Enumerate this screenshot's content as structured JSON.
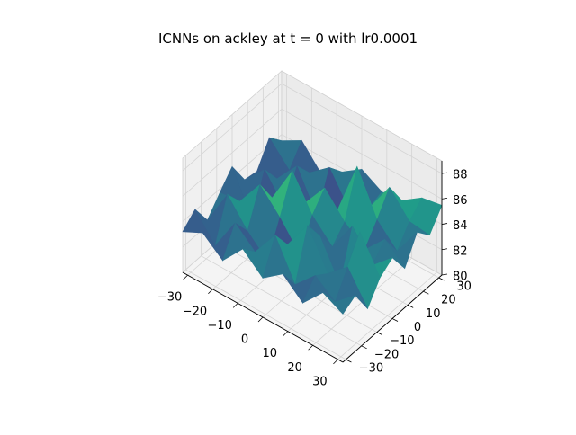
{
  "chart_data": {
    "type": "surface3d",
    "title": "ICNNs on ackley at t = 0 with lr0.0001",
    "colormap": "viridis",
    "grid": true,
    "x_ticks": [
      "−30",
      "−20",
      "−10",
      "0",
      "10",
      "20",
      "30"
    ],
    "y_ticks": [
      "−30",
      "−20",
      "−10",
      "0",
      "10",
      "20",
      "30"
    ],
    "z_ticks": [
      "80",
      "82",
      "84",
      "86",
      "88"
    ],
    "xlim": [
      -32,
      32
    ],
    "ylim": [
      -32,
      32
    ],
    "zlim": [
      80,
      89
    ],
    "x": [
      -32,
      -24,
      -16,
      -8,
      0,
      8,
      16,
      24,
      32
    ],
    "y": [
      -32,
      -24,
      -16,
      -8,
      0,
      8,
      16,
      24,
      32
    ],
    "z": [
      [
        83.2,
        84.1,
        82.4,
        83.7,
        84.9,
        83.0,
        82.8,
        84.6,
        83.5
      ],
      [
        84.0,
        82.1,
        85.3,
        83.9,
        81.6,
        84.7,
        83.1,
        82.9,
        84.4
      ],
      [
        82.7,
        84.8,
        83.3,
        86.1,
        84.2,
        82.5,
        85.0,
        83.6,
        82.6
      ],
      [
        84.5,
        83.4,
        81.8,
        84.4,
        87.2,
        83.8,
        81.9,
        84.9,
        83.7
      ],
      [
        83.1,
        85.6,
        84.0,
        82.3,
        84.6,
        85.9,
        83.2,
        82.4,
        84.8
      ],
      [
        84.3,
        82.6,
        86.4,
        84.7,
        83.0,
        84.1,
        87.6,
        83.5,
        83.9
      ],
      [
        82.9,
        84.2,
        83.5,
        81.7,
        85.5,
        82.8,
        84.3,
        86.0,
        84.1
      ],
      [
        84.6,
        83.0,
        84.9,
        86.8,
        83.3,
        84.5,
        82.7,
        84.2,
        85.2
      ],
      [
        83.8,
        84.4,
        82.5,
        84.1,
        84.8,
        83.1,
        85.1,
        84.0,
        85.5
      ]
    ]
  }
}
